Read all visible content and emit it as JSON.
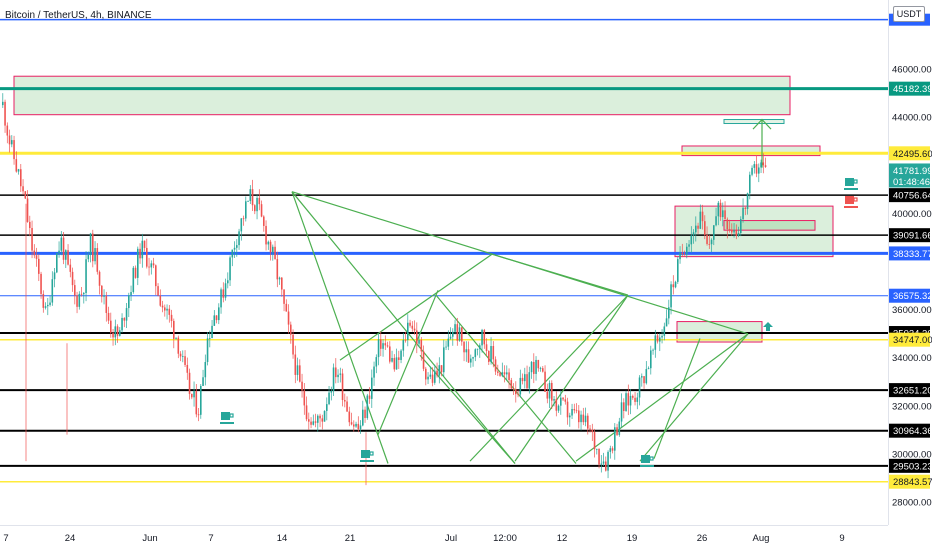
{
  "header": {
    "title": "Bitcoin / TetherUS, 4h, BINANCE",
    "currency": "USDT"
  },
  "colors": {
    "up": "#26a69a",
    "down": "#ef5350",
    "yellow": "#ffeb3b",
    "blue": "#2962ff",
    "teal": "#089981",
    "green_line": "#4caf50",
    "black": "#000000"
  },
  "chart_data": {
    "type": "candlestick",
    "title": "Bitcoin / TetherUS, 4h, BINANCE",
    "y_axis_labels": [
      "46000.00",
      "44000.00",
      "40000.00",
      "36000.00",
      "34000.00",
      "32000.00",
      "30000.00",
      "28000.00"
    ],
    "x_axis_labels": [
      "7",
      "24",
      "Jun",
      "7",
      "14",
      "21",
      "Jul",
      "12:00",
      "12",
      "19",
      "26",
      "Aug",
      "9"
    ],
    "ylim": [
      27000,
      49000
    ],
    "horizontal_levels": [
      {
        "value": 48050,
        "color": "#2962ff",
        "label": "",
        "width": 1.5
      },
      {
        "value": 45182.39,
        "color": "#089981",
        "label": "45182.39",
        "width": 3
      },
      {
        "value": 42495.6,
        "color": "#ffeb3b",
        "label": "42495.60",
        "width": 3
      },
      {
        "value": 40756.64,
        "color": "#000000",
        "label": "40756.64",
        "width": 1.5
      },
      {
        "value": 39091.66,
        "color": "#000000",
        "label": "39091.66",
        "width": 1.5
      },
      {
        "value": 38333.77,
        "color": "#2962ff",
        "label": "38333.77",
        "width": 3
      },
      {
        "value": 36575.32,
        "color": "#2962ff",
        "label": "36575.32",
        "width": 1
      },
      {
        "value": 35024.2,
        "color": "#000000",
        "label": "35024.20",
        "width": 2
      },
      {
        "value": 34747.0,
        "color": "#ffeb3b",
        "label": "34747.00",
        "width": 1.5
      },
      {
        "value": 32651.2,
        "color": "#000000",
        "label": "32651.20",
        "width": 2
      },
      {
        "value": 30964.36,
        "color": "#000000",
        "label": "30964.36",
        "width": 2
      },
      {
        "value": 29503.23,
        "color": "#000000",
        "label": "29503.23",
        "width": 2
      },
      {
        "value": 28843.57,
        "color": "#ffeb3b",
        "label": "28843.57",
        "width": 1.5
      }
    ],
    "current_price": {
      "value": 41781.99,
      "countdown": "01:48:46",
      "color": "#26a69a"
    },
    "close_path": [
      44500,
      42900,
      41800,
      40500,
      38600,
      37300,
      35600,
      37800,
      38900,
      37600,
      36400,
      36800,
      38800,
      37900,
      36200,
      35200,
      34800,
      36300,
      37400,
      38600,
      38100,
      37200,
      36200,
      35600,
      34800,
      33400,
      32300,
      31900,
      34600,
      35700,
      36400,
      37600,
      38900,
      39800,
      40700,
      40300,
      39300,
      38400,
      37200,
      35600,
      34100,
      32600,
      31700,
      31200,
      31600,
      32800,
      33600,
      32400,
      31400,
      31000,
      31900,
      33400,
      34700,
      34300,
      33500,
      34300,
      35700,
      34800,
      33600,
      33100,
      33400,
      34300,
      35300,
      34800,
      33900,
      34500,
      34900,
      34200,
      33600,
      33200,
      33000,
      32700,
      32900,
      33800,
      33200,
      32700,
      32100,
      31900,
      31700,
      31500,
      31300,
      30800,
      30000,
      29700,
      30600,
      31700,
      32200,
      32500,
      33100,
      33900,
      34600,
      35300,
      36800,
      37800,
      38900,
      39300,
      39800,
      38400,
      39700,
      40300,
      39600,
      39300,
      40100,
      41400,
      42100,
      41780
    ]
  },
  "annotations": {
    "coffee_icons": [
      "green-cup",
      "green-cup",
      "green-cup",
      "green-cup",
      "red-cup"
    ]
  }
}
